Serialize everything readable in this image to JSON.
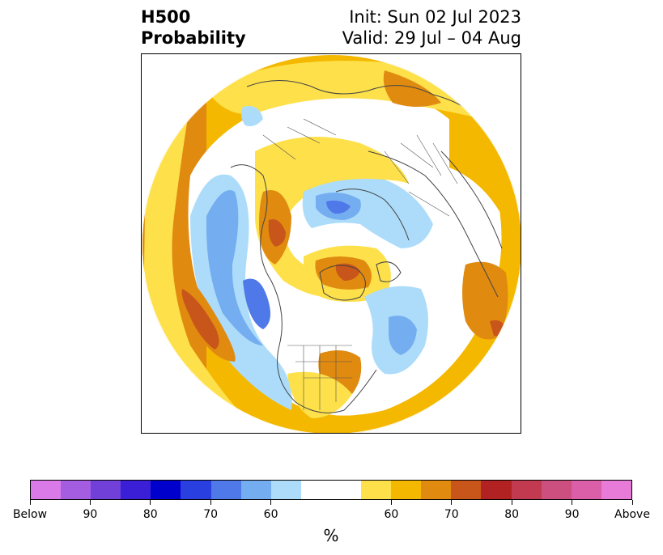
{
  "header": {
    "variable": "H500",
    "product": "Probability",
    "init": "Init: Sun 02 Jul 2023",
    "valid": "Valid: 29 Jul – 04 Aug"
  },
  "map": {
    "projection": "north-polar-stereographic",
    "overlays": [
      "coastlines",
      "country-borders",
      "state-borders"
    ]
  },
  "colorbar": {
    "unit": "%",
    "colors": [
      "#d97ae8",
      "#a45ce0",
      "#7040d8",
      "#3a1fd6",
      "#0000cc",
      "#2a3fe0",
      "#4f78e8",
      "#74aef0",
      "#acdcfa",
      "#ffffff",
      "#ffffff",
      "#fde04a",
      "#f4b800",
      "#e08a10",
      "#c8551a",
      "#b22222",
      "#c23a50",
      "#cc4f80",
      "#da5ea8",
      "#e87ad8"
    ],
    "tick_labels": [
      "Below",
      "90",
      "80",
      "70",
      "60",
      "60",
      "70",
      "80",
      "90",
      "Above"
    ]
  }
}
